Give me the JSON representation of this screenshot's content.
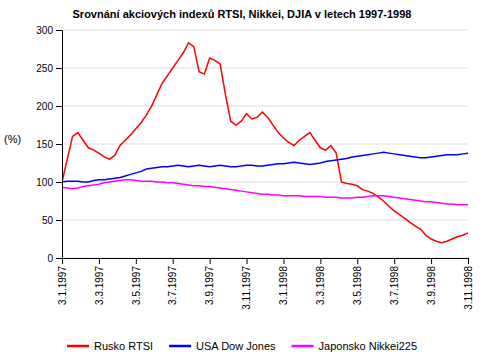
{
  "chart_data": {
    "type": "line",
    "title": "Srovnání akciových indexů RTSI, Nikkei, DJIA v letech 1997-1998",
    "y_label": "(%)",
    "categories": [
      "3.1.1997",
      null,
      null,
      null,
      null,
      null,
      null,
      "3.3.1997",
      null,
      null,
      null,
      null,
      null,
      null,
      "3.5.1997",
      null,
      null,
      null,
      null,
      null,
      null,
      "3.7.1997",
      null,
      null,
      null,
      null,
      null,
      null,
      "3.9.1997",
      null,
      null,
      null,
      null,
      null,
      null,
      "3.11.1997",
      null,
      null,
      null,
      null,
      null,
      null,
      "3.1.1998",
      null,
      null,
      null,
      null,
      null,
      null,
      "3.3.1998",
      null,
      null,
      null,
      null,
      null,
      null,
      "3.5.1998",
      null,
      null,
      null,
      null,
      null,
      null,
      "3.7.1998",
      null,
      null,
      null,
      null,
      null,
      null,
      "3.9.1998",
      null,
      null,
      null,
      null,
      null,
      null,
      "3.11.1998"
    ],
    "series": [
      {
        "name": "Rusko RTSI",
        "color": "#ff0000",
        "values": [
          100,
          130,
          160,
          165,
          155,
          145,
          142,
          138,
          133,
          130,
          135,
          148,
          155,
          162,
          170,
          178,
          188,
          200,
          215,
          230,
          240,
          250,
          260,
          270,
          283,
          278,
          245,
          242,
          263,
          260,
          255,
          215,
          180,
          175,
          180,
          190,
          183,
          185,
          192,
          185,
          175,
          165,
          158,
          152,
          148,
          155,
          160,
          165,
          155,
          145,
          142,
          148,
          138,
          100,
          98,
          97,
          95,
          90,
          88,
          85,
          80,
          75,
          68,
          62,
          57,
          52,
          47,
          42,
          38,
          30,
          25,
          22,
          20,
          22,
          25,
          28,
          30,
          33
        ]
      },
      {
        "name": "USA Dow Jones",
        "color": "#0000ff",
        "values": [
          100,
          101,
          101,
          101,
          100,
          100,
          102,
          103,
          103,
          104,
          105,
          106,
          108,
          110,
          112,
          114,
          117,
          118,
          119,
          120,
          120,
          121,
          122,
          121,
          120,
          121,
          122,
          121,
          120,
          121,
          122,
          121,
          120,
          120,
          121,
          122,
          122,
          121,
          121,
          122,
          123,
          124,
          124,
          125,
          126,
          125,
          124,
          123,
          124,
          125,
          127,
          128,
          129,
          130,
          131,
          133,
          134,
          135,
          136,
          137,
          138,
          139,
          138,
          137,
          136,
          135,
          134,
          133,
          132,
          132,
          133,
          134,
          135,
          136,
          136,
          136,
          137,
          138
        ]
      },
      {
        "name": "Japonsko Nikkei225",
        "color": "#ff00ff",
        "values": [
          93,
          92,
          91,
          92,
          94,
          95,
          96,
          97,
          99,
          100,
          101,
          102,
          103,
          103,
          102,
          101,
          101,
          101,
          100,
          100,
          99,
          99,
          98,
          97,
          96,
          95,
          95,
          94,
          94,
          93,
          92,
          91,
          90,
          89,
          88,
          87,
          86,
          85,
          84,
          84,
          83,
          83,
          82,
          82,
          82,
          82,
          81,
          81,
          81,
          81,
          80,
          80,
          80,
          79,
          79,
          79,
          80,
          80,
          81,
          82,
          82,
          82,
          81,
          80,
          79,
          78,
          77,
          76,
          75,
          74,
          74,
          73,
          72,
          71,
          71,
          70,
          70,
          70
        ]
      }
    ],
    "ylim": [
      0,
      300
    ],
    "yticks": [
      0,
      50,
      100,
      150,
      200,
      250,
      300
    ],
    "grid": "y",
    "legend": "bottom"
  }
}
